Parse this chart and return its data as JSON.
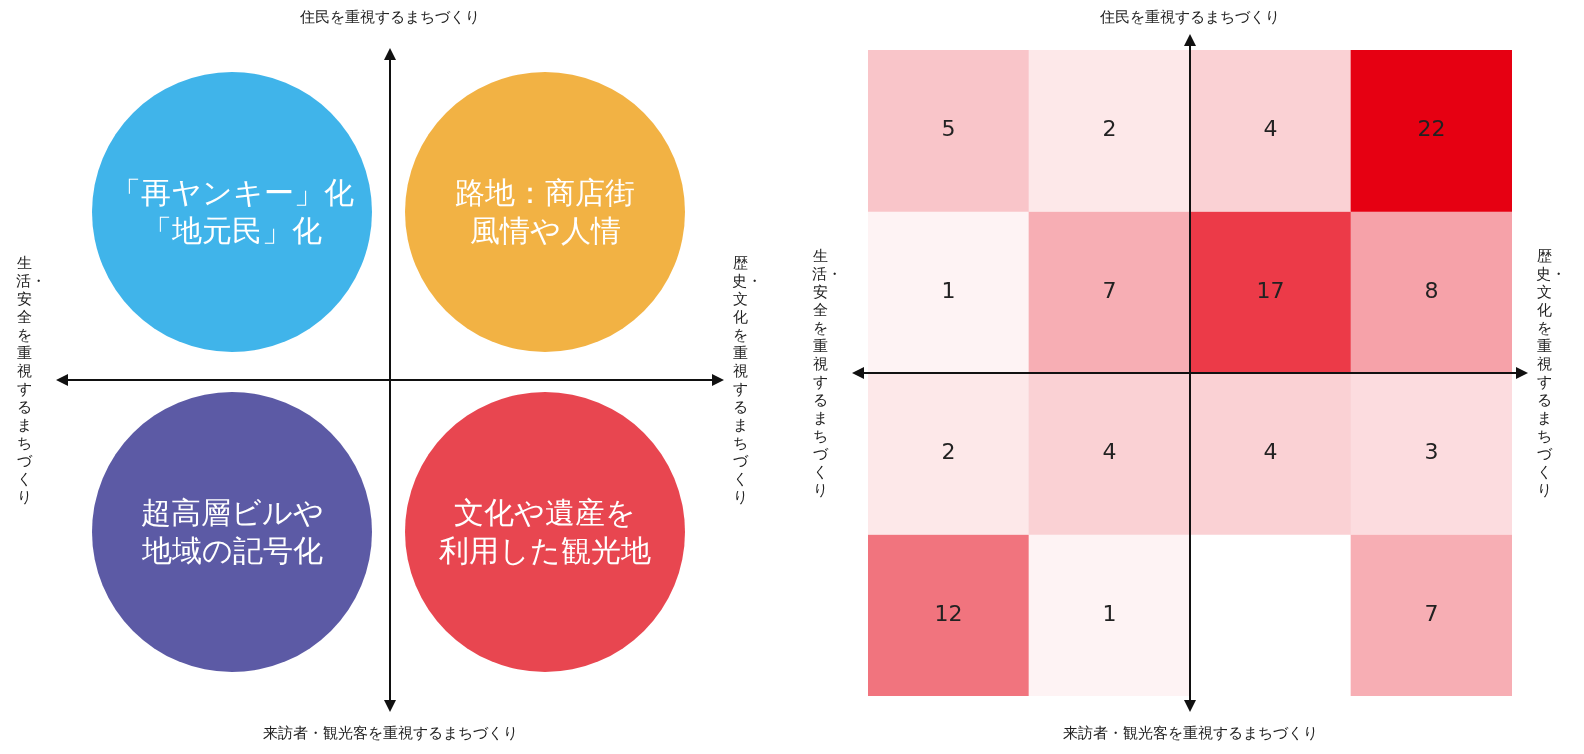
{
  "chart_data": [
    {
      "type": "other",
      "x2label": "住民を重視するまちづくり",
      "xlabel": "来訪者・観光客を重視するまちづくり",
      "ylabel": "生活・安全を重視するまちづくり",
      "y2label": "歴史・文化を重視するまちづくり",
      "annotations": [
        "「再ヤンキー」化",
        "「地元民」化",
        "路地：商店街",
        "風情や人情",
        "超高層ビルや",
        "地域の記号化",
        "文化や遺産を",
        "利用した観光地"
      ],
      "colors": [
        "#40b4ea",
        "#f2b244",
        "#5c5aa5",
        "#e84650"
      ]
    },
    {
      "type": "heatmap",
      "x2label": "住民を重視するまちづくり",
      "xlabel": "来訪者・観光客を重視するまちづくり",
      "ylabel": "生活・安全を重視するまちづくり",
      "y2label": "歴史・文化を重視するまちづくり",
      "categories": [
        null,
        null,
        null,
        null
      ],
      "y_categories": [
        null,
        null,
        null,
        null
      ],
      "cells": [
        [
          5,
          2,
          4,
          22
        ],
        [
          1,
          7,
          17,
          8
        ],
        [
          2,
          4,
          4,
          3
        ],
        [
          12,
          1,
          null,
          7
        ]
      ],
      "color": "#e60012",
      "data_labels": true
    }
  ]
}
